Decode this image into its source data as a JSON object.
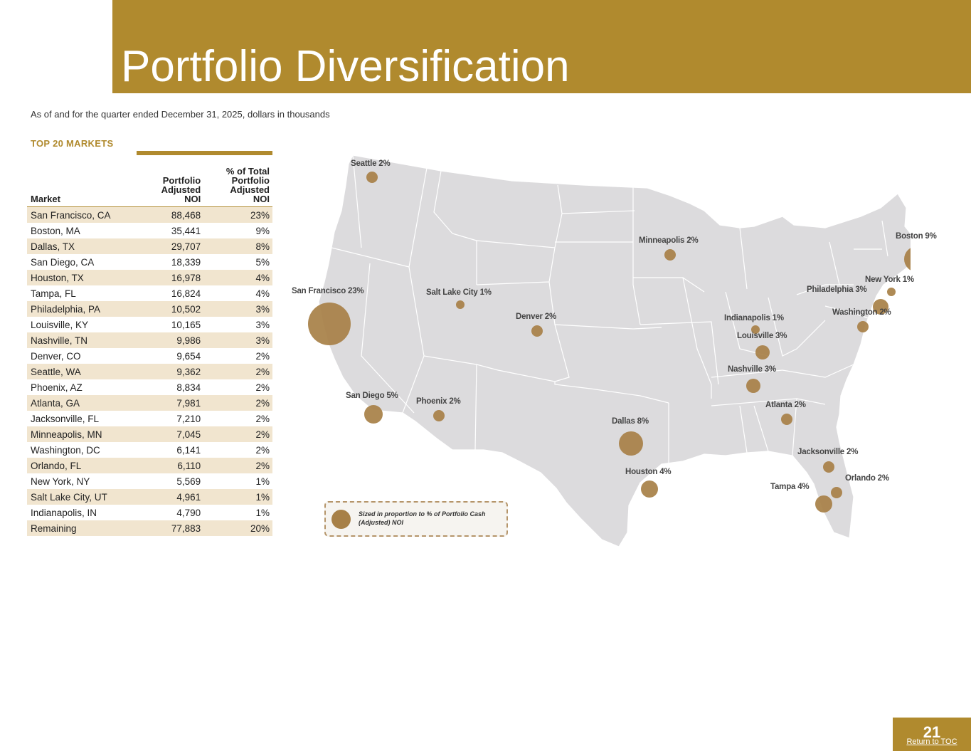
{
  "header": {
    "title": "Portfolio Diversification"
  },
  "subtitle": "As of and for the quarter ended December 31, 2025, dollars in thousands",
  "section_heading": "TOP 20 MARKETS",
  "table": {
    "headers": {
      "market": "Market",
      "noi": [
        "Portfolio",
        "Adjusted",
        "NOI"
      ],
      "pct": [
        "% of Total",
        "Portfolio",
        "Adjusted",
        "NOI"
      ]
    },
    "rows": [
      {
        "market": "San Francisco, CA",
        "noi": "88,468",
        "pct": "23%"
      },
      {
        "market": "Boston, MA",
        "noi": "35,441",
        "pct": "9%"
      },
      {
        "market": "Dallas, TX",
        "noi": "29,707",
        "pct": "8%"
      },
      {
        "market": "San Diego, CA",
        "noi": "18,339",
        "pct": "5%"
      },
      {
        "market": "Houston, TX",
        "noi": "16,978",
        "pct": "4%"
      },
      {
        "market": "Tampa, FL",
        "noi": "16,824",
        "pct": "4%"
      },
      {
        "market": "Philadelphia, PA",
        "noi": "10,502",
        "pct": "3%"
      },
      {
        "market": "Louisville, KY",
        "noi": "10,165",
        "pct": "3%"
      },
      {
        "market": "Nashville, TN",
        "noi": "9,986",
        "pct": "3%"
      },
      {
        "market": "Denver, CO",
        "noi": "9,654",
        "pct": "2%"
      },
      {
        "market": "Seattle, WA",
        "noi": "9,362",
        "pct": "2%"
      },
      {
        "market": "Phoenix, AZ",
        "noi": "8,834",
        "pct": "2%"
      },
      {
        "market": "Atlanta, GA",
        "noi": "7,981",
        "pct": "2%"
      },
      {
        "market": "Jacksonville, FL",
        "noi": "7,210",
        "pct": "2%"
      },
      {
        "market": "Minneapolis, MN",
        "noi": "7,045",
        "pct": "2%"
      },
      {
        "market": "Washington, DC",
        "noi": "6,141",
        "pct": "2%"
      },
      {
        "market": "Orlando, FL",
        "noi": "6,110",
        "pct": "2%"
      },
      {
        "market": "New York, NY",
        "noi": "5,569",
        "pct": "1%"
      },
      {
        "market": "Salt Lake City, UT",
        "noi": "4,961",
        "pct": "1%"
      },
      {
        "market": "Indianapolis, IN",
        "noi": "4,790",
        "pct": "1%"
      },
      {
        "market": "Remaining",
        "noi": "77,883",
        "pct": "20%"
      }
    ]
  },
  "map": {
    "cities": [
      {
        "label": "Seattle 2%"
      },
      {
        "label": "Minneapolis 2%"
      },
      {
        "label": "Boston 9%"
      },
      {
        "label": "New York 1%"
      },
      {
        "label": "San Francisco 23%"
      },
      {
        "label": "Salt Lake City 1%"
      },
      {
        "label": "Denver 2%"
      },
      {
        "label": "Philadelphia 3%"
      },
      {
        "label": "Washington 2%"
      },
      {
        "label": "Indianapolis 1%"
      },
      {
        "label": "Louisville 3%"
      },
      {
        "label": "Nashville 3%"
      },
      {
        "label": "San Diego 5%"
      },
      {
        "label": "Phoenix 2%"
      },
      {
        "label": "Atlanta 2%"
      },
      {
        "label": "Dallas 8%"
      },
      {
        "label": "Jacksonville 2%"
      },
      {
        "label": "Houston 4%"
      },
      {
        "label": "Orlando 2%"
      },
      {
        "label": "Tampa 4%"
      }
    ],
    "legend_text": "Sized in proportion to % of Portfolio Cash (Adjusted) NOI",
    "colors": {
      "marker": "#a78047",
      "land": "#dcdbdd",
      "borders": "#ffffff"
    }
  },
  "footer": {
    "page_number": "21",
    "toc_link": "Return to TOC"
  },
  "colors": {
    "accent": "#b08a2e",
    "row_shade": "#f1e5cf"
  }
}
